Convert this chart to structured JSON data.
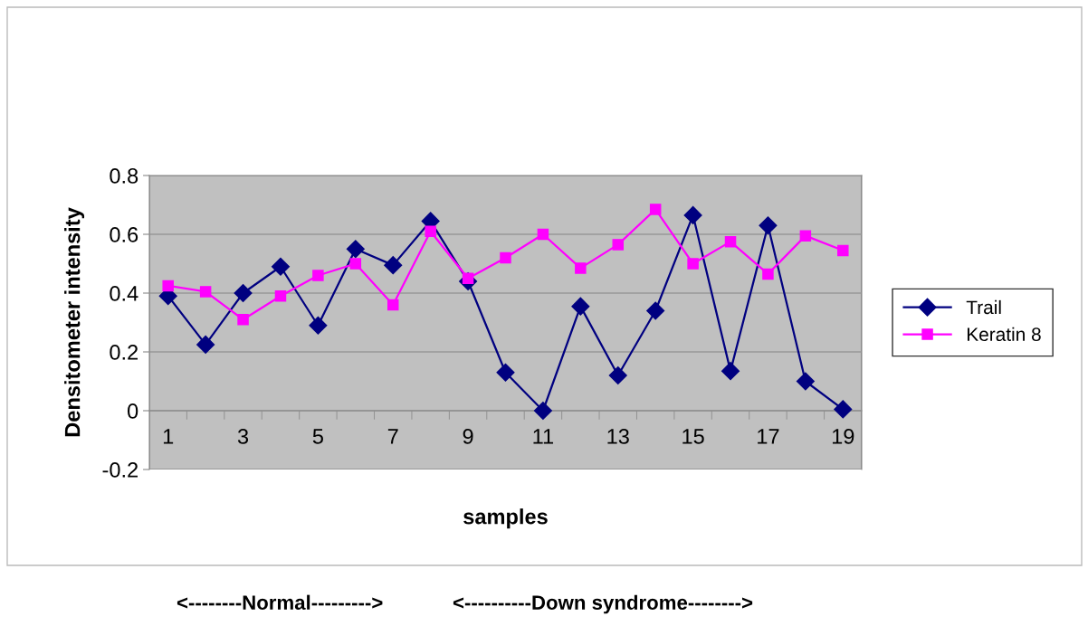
{
  "chart_data": {
    "type": "line",
    "xlabel": "samples",
    "ylabel": "Densitometer intensity",
    "annotations": [
      "<--------Normal--------->",
      "<----------Down syndrome-------->"
    ],
    "categories": [
      "1",
      null,
      "3",
      null,
      "5",
      null,
      "7",
      null,
      "9",
      null,
      "11",
      null,
      "13",
      null,
      "15",
      null,
      "17",
      null,
      "19"
    ],
    "series": [
      {
        "name": "Trail",
        "color": "#000080",
        "marker": "diamond",
        "values": [
          0.39,
          0.225,
          0.4,
          0.49,
          0.29,
          0.55,
          0.495,
          0.645,
          0.44,
          0.13,
          0.0,
          0.355,
          0.12,
          0.34,
          0.665,
          0.135,
          0.63,
          0.1,
          0.005
        ]
      },
      {
        "name": "Keratin 8",
        "color": "#ff00ff",
        "marker": "square",
        "values": [
          0.425,
          0.405,
          0.31,
          0.39,
          0.46,
          0.5,
          0.36,
          0.61,
          0.45,
          0.52,
          0.6,
          0.485,
          0.565,
          0.685,
          0.5,
          0.575,
          0.465,
          0.595,
          0.545
        ]
      }
    ],
    "ylim": [
      -0.2,
      0.8
    ],
    "yticks": [
      -0.2,
      0,
      0.2,
      0.4,
      0.6,
      0.8
    ],
    "grid": "y",
    "legend": "right",
    "line_style": "solid"
  }
}
